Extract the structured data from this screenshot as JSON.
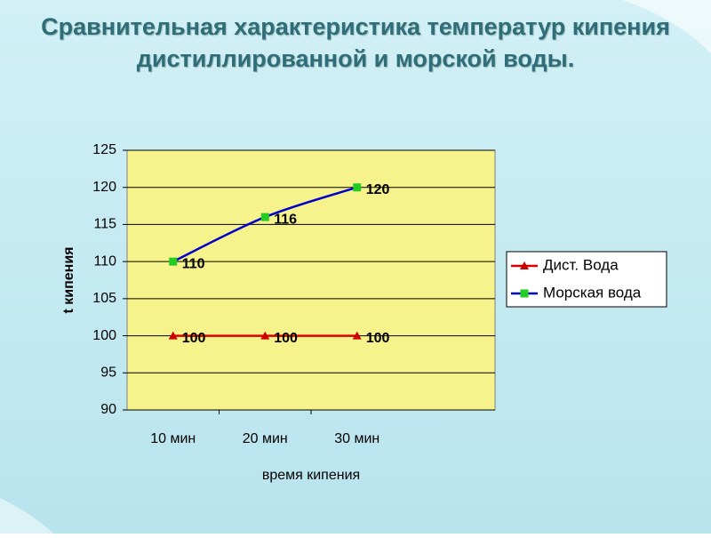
{
  "chart_data": {
    "type": "line",
    "title": "Сравнительная характеристика температур кипения дистиллированной и морской воды.",
    "x_label": "время кипения",
    "y_label": "t кипения",
    "categories": [
      "10 мин",
      "20 мин",
      "30 мин"
    ],
    "series": [
      {
        "name": "Дист. Вода",
        "color": "#dd0000",
        "marker": "triangle",
        "marker_color": "#cc0000",
        "values": [
          100,
          100,
          100
        ]
      },
      {
        "name": "Морская вода",
        "color": "#0000cc",
        "marker": "square",
        "marker_color": "#22cc22",
        "values": [
          110,
          116,
          120
        ]
      }
    ],
    "ylim": [
      90,
      125
    ],
    "yticks": [
      90,
      95,
      100,
      105,
      110,
      115,
      120,
      125
    ],
    "grid": true,
    "legend": "right",
    "plot_background": "#f7f38c"
  }
}
